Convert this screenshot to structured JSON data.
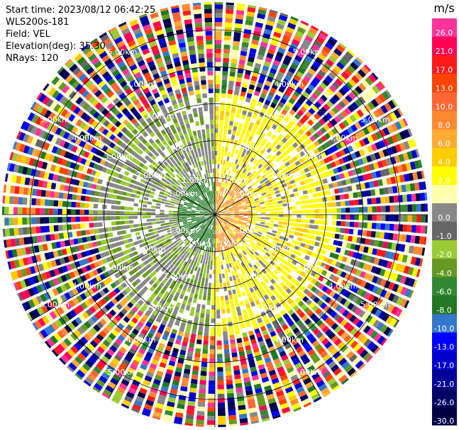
{
  "info": {
    "start_time": "Start time: 2023/08/12 06:42:25",
    "instrument": "WLS200s-181",
    "field": "Field: VEL",
    "elevation": "Elevation(deg): 35.30",
    "nrays": "NRays: 120"
  },
  "colorbar": {
    "unit": "m/s",
    "ticks": [
      "26.0",
      "21.0",
      "17.0",
      "13.0",
      "10.0",
      "8.0",
      "6.0",
      "4.0",
      "2.0",
      "1.0",
      "0.0",
      "-1.0",
      "-2.0",
      "-4.0",
      "-6.0",
      "-8.0",
      "-10.0",
      "-13.0",
      "-17.0",
      "-21.0",
      "-26.0",
      "-30.0"
    ],
    "colors": [
      "#ff3399",
      "#ff0055",
      "#ff1a1a",
      "#ff4400",
      "#ff6633",
      "#ff8833",
      "#ffaa33",
      "#ffcc00",
      "#ffff00",
      "#ffffaa",
      "#888888",
      "#666666",
      "#99cc33",
      "#669922",
      "#338833",
      "#227722",
      "#3377cc",
      "#0000ff",
      "#0000cc",
      "#000099",
      "#000066",
      "#000044"
    ]
  },
  "chart_data": {
    "type": "heatmap",
    "subtype": "radar PPI velocity scan",
    "field": "VEL",
    "unit": "m/s",
    "nrays": 120,
    "elevation_deg": 35.3,
    "range_rings_km": [
      1.0,
      2.0,
      3.0,
      4.0,
      5.0
    ],
    "ring_labels": [
      "1.00km",
      "2.00km",
      "3.00km",
      "4.00km",
      "5.00km"
    ],
    "colorbar_range": [
      -30.0,
      26.0
    ]
  }
}
